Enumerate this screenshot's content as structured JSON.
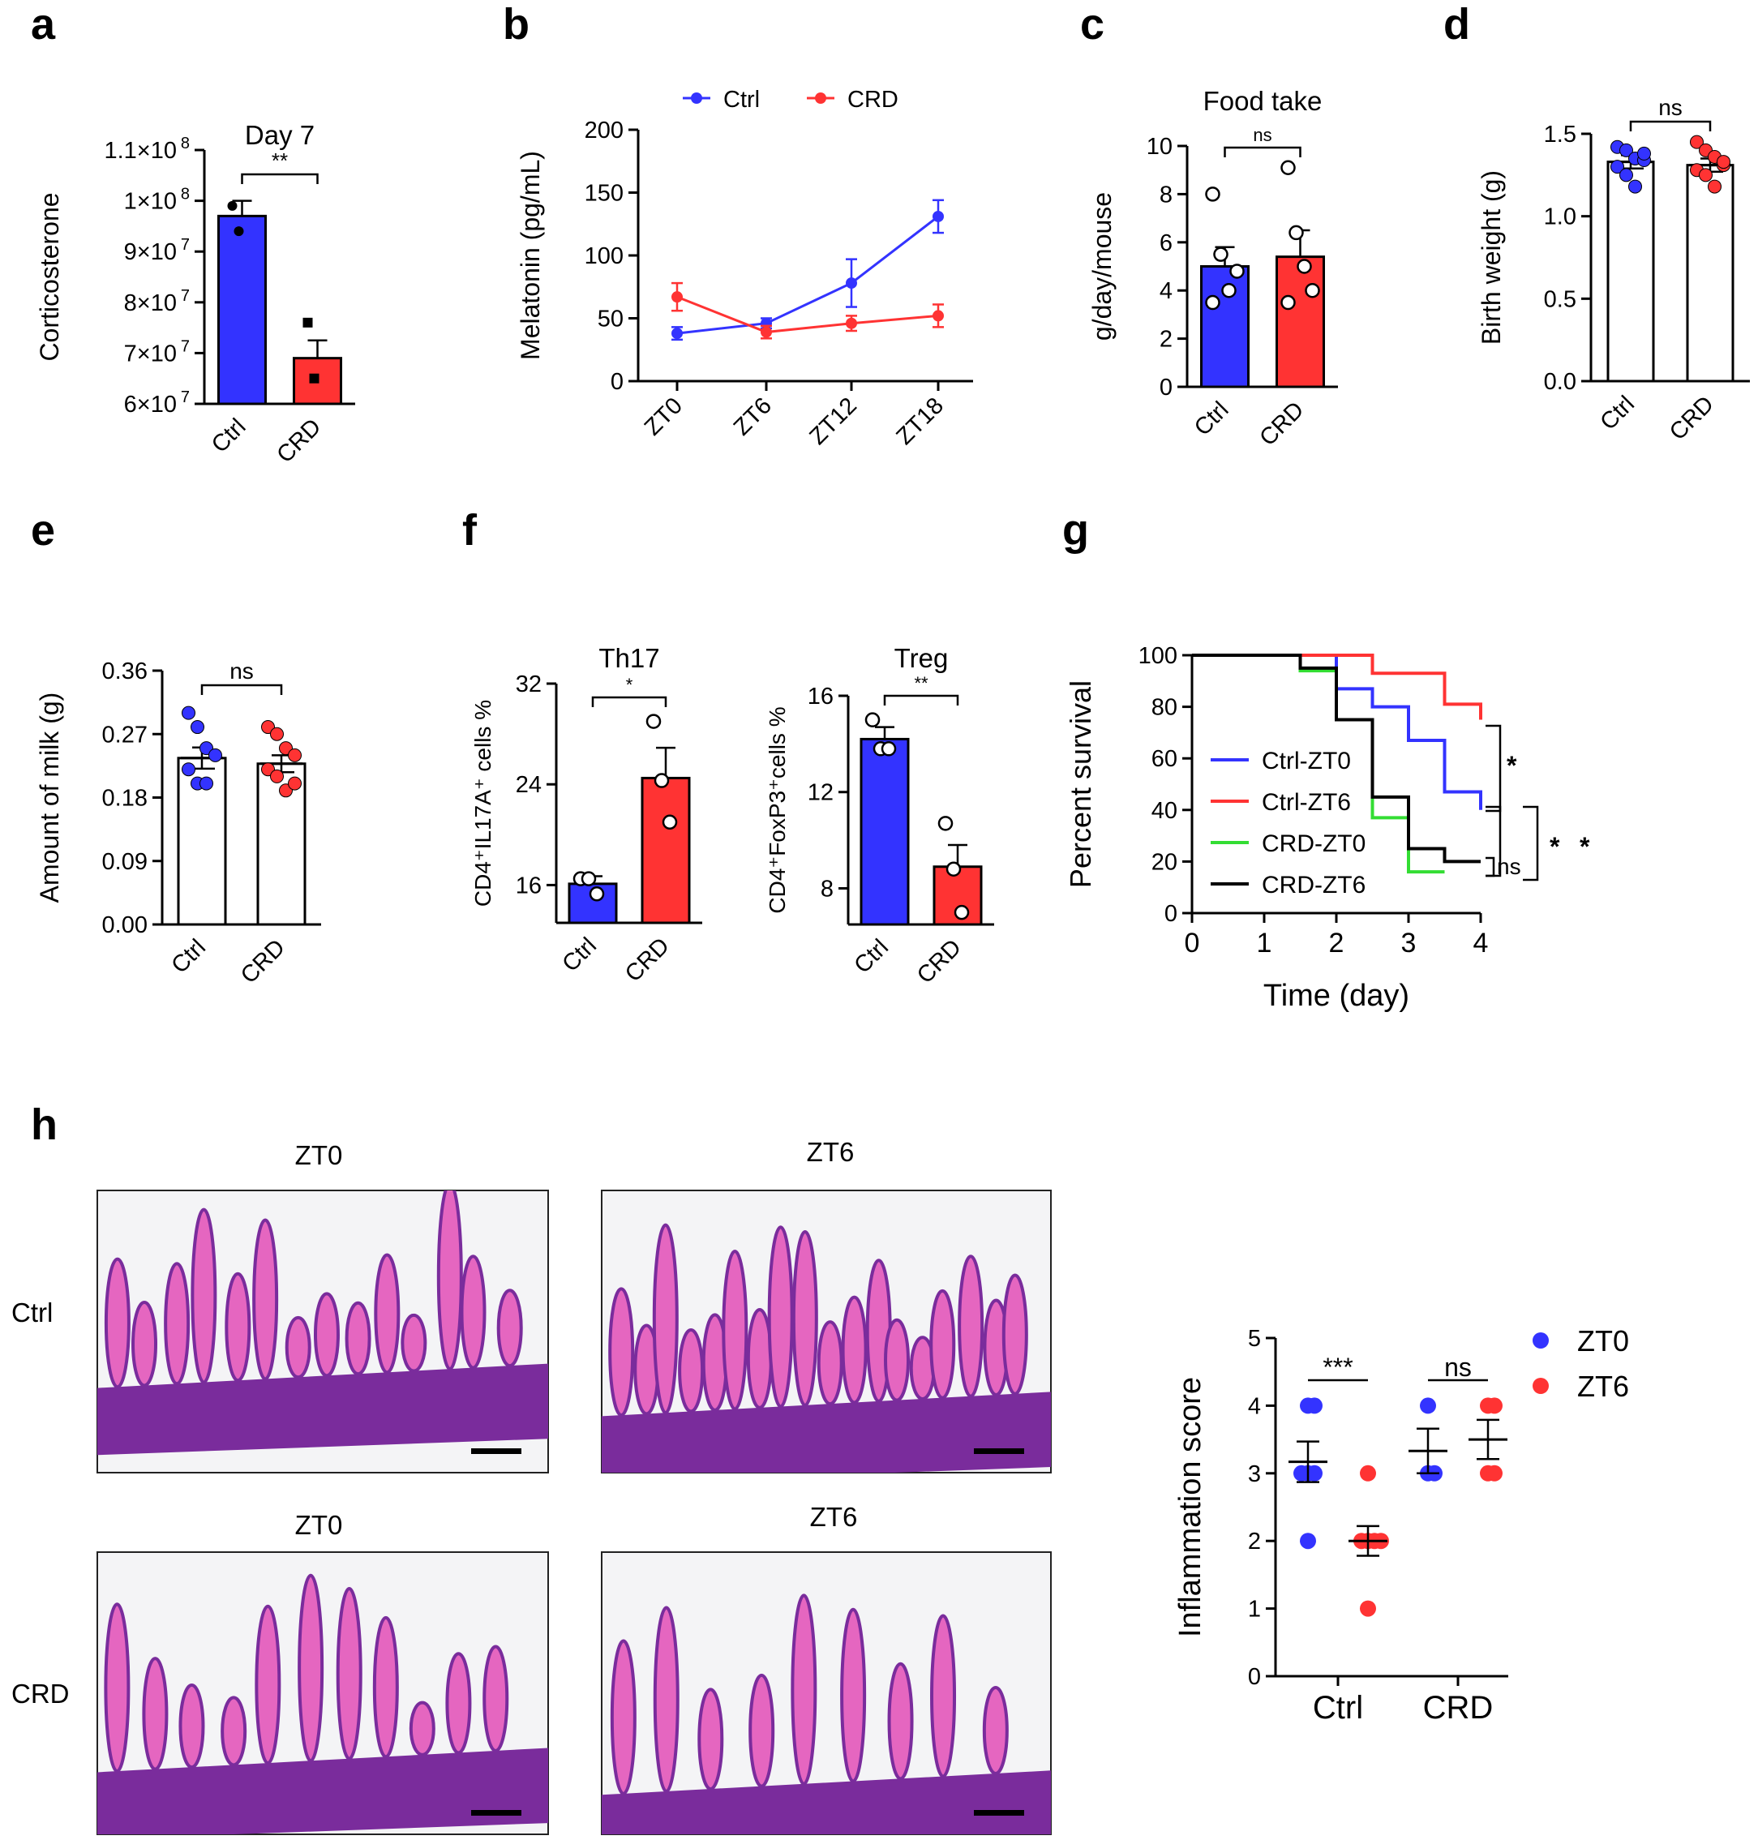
{
  "colors": {
    "ctrl_blue": "#3333ff",
    "crd_red": "#ff3333",
    "green": "#33dd33",
    "black": "#000000",
    "tissue_pink": "#e566c0",
    "tissue_purple": "#7a2c9c"
  },
  "panel_labels": [
    "a",
    "b",
    "c",
    "d",
    "e",
    "f",
    "g",
    "h"
  ],
  "chart_data": [
    {
      "id": "a",
      "type": "bar",
      "title": "Day 7",
      "ylabel": "Corticosterone",
      "categories": [
        "Ctrl",
        "CRD"
      ],
      "colors": [
        "ctrl_blue",
        "crd_red"
      ],
      "values": [
        97000000,
        69000000
      ],
      "errors": [
        3000000,
        3500000
      ],
      "points": [
        [
          99000000,
          94000000
        ],
        [
          76000000,
          65000000
        ]
      ],
      "ylim": [
        60000000,
        110000000
      ],
      "yticks": [
        60000000,
        70000000,
        80000000,
        90000000,
        100000000,
        110000000
      ],
      "ytick_labels": [
        "6×10",
        "7×10",
        "8×10",
        "9×10",
        "1×10",
        "1.1×10"
      ],
      "ytick_exp": "7",
      "ytick_exps": [
        "7",
        "7",
        "7",
        "7",
        "8",
        "8"
      ],
      "significance": [
        {
          "label": "**",
          "pair": [
            0,
            1
          ]
        }
      ]
    },
    {
      "id": "b",
      "type": "line",
      "ylabel": "Melatonin (pg/mL)",
      "categories": [
        "ZT0",
        "ZT6",
        "ZT12",
        "ZT18"
      ],
      "ylim": [
        0,
        200
      ],
      "yticks": [
        0,
        50,
        100,
        150,
        200
      ],
      "legend": [
        "Ctrl",
        "CRD"
      ],
      "series": [
        {
          "name": "Ctrl",
          "color": "ctrl_blue",
          "values": [
            38,
            46,
            78,
            131
          ],
          "errors": [
            5,
            4,
            19,
            13
          ]
        },
        {
          "name": "CRD",
          "color": "crd_red",
          "values": [
            67,
            39,
            46,
            52
          ],
          "errors": [
            11,
            5,
            6,
            9
          ]
        }
      ]
    },
    {
      "id": "c",
      "type": "bar",
      "title": "Food take",
      "ylabel": "g/day/mouse",
      "categories": [
        "Ctrl",
        "CRD"
      ],
      "colors": [
        "ctrl_blue",
        "crd_red"
      ],
      "values": [
        5.0,
        5.4
      ],
      "errors": [
        0.8,
        1.1
      ],
      "points": [
        [
          8.0,
          5.5,
          4.0,
          4.8,
          3.5
        ],
        [
          9.1,
          6.4,
          5.0,
          4.0,
          3.5
        ]
      ],
      "ylim": [
        0,
        10
      ],
      "yticks": [
        0,
        2,
        4,
        6,
        8,
        10
      ],
      "significance": [
        {
          "label": "ns",
          "pair": [
            0,
            1
          ]
        }
      ]
    },
    {
      "id": "d",
      "type": "bar",
      "ylabel": "Birth weight (g)",
      "categories": [
        "Ctrl",
        "CRD"
      ],
      "colors": [
        "ctrl_blue",
        "crd_red"
      ],
      "fill": "white",
      "values": [
        1.33,
        1.31
      ],
      "errors": [
        0.04,
        0.04
      ],
      "points": [
        [
          1.42,
          1.4,
          1.35,
          1.34,
          1.3,
          1.25,
          1.18,
          1.38
        ],
        [
          1.45,
          1.4,
          1.36,
          1.31,
          1.28,
          1.25,
          1.18,
          1.33
        ]
      ],
      "ylim": [
        0,
        1.5
      ],
      "yticks": [
        0,
        0.5,
        1.0,
        1.5
      ],
      "ytick_labels": [
        "0.0",
        "0.5",
        "1.0",
        "1.5"
      ],
      "significance": [
        {
          "label": "ns",
          "pair": [
            0,
            1
          ]
        }
      ]
    },
    {
      "id": "e",
      "type": "bar",
      "ylabel": "Amount of milk (g)",
      "categories": [
        "Ctrl",
        "CRD"
      ],
      "colors": [
        "ctrl_blue",
        "crd_red"
      ],
      "fill": "white",
      "values": [
        0.236,
        0.228
      ],
      "errors": [
        0.015,
        0.012
      ],
      "points": [
        [
          0.3,
          0.28,
          0.25,
          0.24,
          0.22,
          0.2,
          0.2
        ],
        [
          0.28,
          0.27,
          0.25,
          0.24,
          0.22,
          0.21,
          0.19,
          0.2
        ]
      ],
      "ylim": [
        0,
        0.36
      ],
      "yticks": [
        0,
        0.09,
        0.18,
        0.27,
        0.36
      ],
      "ytick_labels": [
        "0.00",
        "0.09",
        "0.18",
        "0.27",
        "0.36"
      ],
      "significance": [
        {
          "label": "ns",
          "pair": [
            0,
            1
          ]
        }
      ]
    },
    {
      "id": "f1",
      "type": "bar",
      "title": "Th17",
      "ylabel": "CD4⁺IL17A⁺ cells %",
      "categories": [
        "Ctrl",
        "CRD"
      ],
      "colors": [
        "ctrl_blue",
        "crd_red"
      ],
      "values": [
        16.1,
        24.5
      ],
      "errors": [
        0.6,
        2.4
      ],
      "points": [
        [
          16.5,
          16.5,
          15.3
        ],
        [
          29.0,
          24.3,
          21.0
        ]
      ],
      "ylim": [
        13,
        32
      ],
      "yticks": [
        16,
        24,
        32
      ],
      "significance": [
        {
          "label": "*",
          "pair": [
            0,
            1
          ]
        }
      ]
    },
    {
      "id": "f2",
      "type": "bar",
      "title": "Treg",
      "ylabel": "CD4⁺FoxP3⁺cells %",
      "categories": [
        "Ctrl",
        "CRD"
      ],
      "colors": [
        "ctrl_blue",
        "crd_red"
      ],
      "values": [
        14.2,
        8.9
      ],
      "errors": [
        0.5,
        0.9
      ],
      "points": [
        [
          15.0,
          13.8,
          13.8
        ],
        [
          10.7,
          8.8,
          7.0
        ]
      ],
      "ylim": [
        6.5,
        16
      ],
      "yticks": [
        8,
        12,
        16
      ],
      "significance": [
        {
          "label": "**",
          "pair": [
            0,
            1
          ]
        }
      ]
    },
    {
      "id": "g",
      "type": "line",
      "subtype": "survival",
      "xlabel": "Time (day)",
      "ylabel": "Percent survival",
      "xlim": [
        0,
        4
      ],
      "ylim": [
        0,
        100
      ],
      "xticks": [
        0,
        1,
        2,
        3,
        4
      ],
      "yticks": [
        0,
        20,
        40,
        60,
        80,
        100
      ],
      "series": [
        {
          "name": "Ctrl-ZT0",
          "color": "ctrl_blue",
          "steps": [
            [
              0,
              100
            ],
            [
              2,
              100
            ],
            [
              2,
              87
            ],
            [
              2.5,
              87
            ],
            [
              2.5,
              80
            ],
            [
              3,
              80
            ],
            [
              3,
              67
            ],
            [
              3.5,
              67
            ],
            [
              3.5,
              47
            ],
            [
              4,
              47
            ],
            [
              4,
              40
            ]
          ]
        },
        {
          "name": "Ctrl-ZT6",
          "color": "crd_red",
          "steps": [
            [
              0,
              100
            ],
            [
              2.5,
              100
            ],
            [
              2.5,
              93
            ],
            [
              3.5,
              93
            ],
            [
              3.5,
              81
            ],
            [
              4,
              81
            ],
            [
              4,
              75
            ]
          ]
        },
        {
          "name": "CRD-ZT0",
          "color": "green",
          "steps": [
            [
              0,
              100
            ],
            [
              1.5,
              100
            ],
            [
              1.5,
              94
            ],
            [
              2,
              94
            ],
            [
              2,
              75
            ],
            [
              2.5,
              75
            ],
            [
              2.5,
              37
            ],
            [
              3,
              37
            ],
            [
              3,
              16
            ],
            [
              3.5,
              16
            ]
          ]
        },
        {
          "name": "CRD-ZT6",
          "color": "black",
          "steps": [
            [
              0,
              100
            ],
            [
              1.5,
              100
            ],
            [
              1.5,
              95
            ],
            [
              2,
              95
            ],
            [
              2,
              75
            ],
            [
              2.5,
              75
            ],
            [
              2.5,
              45
            ],
            [
              3,
              45
            ],
            [
              3,
              25
            ],
            [
              3.5,
              25
            ],
            [
              3.5,
              20
            ],
            [
              4,
              20
            ]
          ]
        }
      ],
      "significance": [
        "*",
        "*",
        "*",
        "ns"
      ]
    },
    {
      "id": "h_score",
      "type": "scatter",
      "ylabel": "Inflammation score",
      "categories": [
        "Ctrl",
        "CRD"
      ],
      "legend": [
        "ZT0",
        "ZT6"
      ],
      "ylim": [
        0,
        5
      ],
      "yticks": [
        0,
        1,
        2,
        3,
        4,
        5
      ],
      "groups": [
        {
          "category": "Ctrl",
          "series": "ZT0",
          "color": "ctrl_blue",
          "mean": 3.17,
          "sem": 0.3,
          "points": [
            4,
            4,
            3,
            3,
            3,
            2
          ]
        },
        {
          "category": "Ctrl",
          "series": "ZT6",
          "color": "crd_red",
          "mean": 2.0,
          "sem": 0.22,
          "points": [
            3,
            2,
            2,
            2,
            2,
            1
          ]
        },
        {
          "category": "CRD",
          "series": "ZT0",
          "color": "ctrl_blue",
          "mean": 3.33,
          "sem": 0.33,
          "points": [
            4,
            3,
            3
          ]
        },
        {
          "category": "CRD",
          "series": "ZT6",
          "color": "crd_red",
          "mean": 3.5,
          "sem": 0.29,
          "points": [
            4,
            4,
            3,
            3
          ]
        }
      ],
      "significance": [
        {
          "label": "***",
          "category": "Ctrl"
        },
        {
          "label": "ns",
          "category": "CRD"
        }
      ]
    }
  ],
  "histology": {
    "row_labels": [
      "Ctrl",
      "CRD"
    ],
    "column_labels": [
      "ZT0",
      "ZT6",
      "ZT0",
      "ZT6"
    ]
  }
}
